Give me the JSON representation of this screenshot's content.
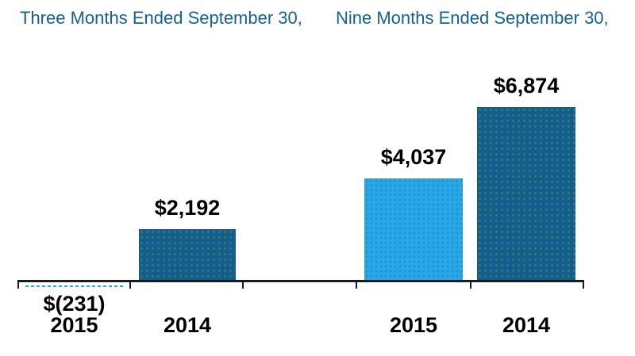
{
  "chart_data": {
    "type": "bar",
    "title": "",
    "legend_visible": false,
    "gridlines": false,
    "groups": [
      {
        "header": "Three Months Ended September 30,",
        "categories": [
          "2015",
          "2014"
        ],
        "bars": [
          {
            "category": "2015",
            "value": -231,
            "label": "$(231)"
          },
          {
            "category": "2014",
            "value": 2192,
            "label": "$2,192"
          }
        ]
      },
      {
        "header": "Nine Months Ended September 30,",
        "categories": [
          "2015",
          "2014"
        ],
        "bars": [
          {
            "category": "2015",
            "value": 4037,
            "label": "$4,037"
          },
          {
            "category": "2014",
            "value": 6874,
            "label": "$6,874"
          }
        ]
      }
    ],
    "colors": {
      "series_2015": "#29A6E4",
      "series_2014": "#135E8D",
      "header_text": "#17618F",
      "label_text": "#000000",
      "axis_line": "#1A1A1A"
    }
  }
}
